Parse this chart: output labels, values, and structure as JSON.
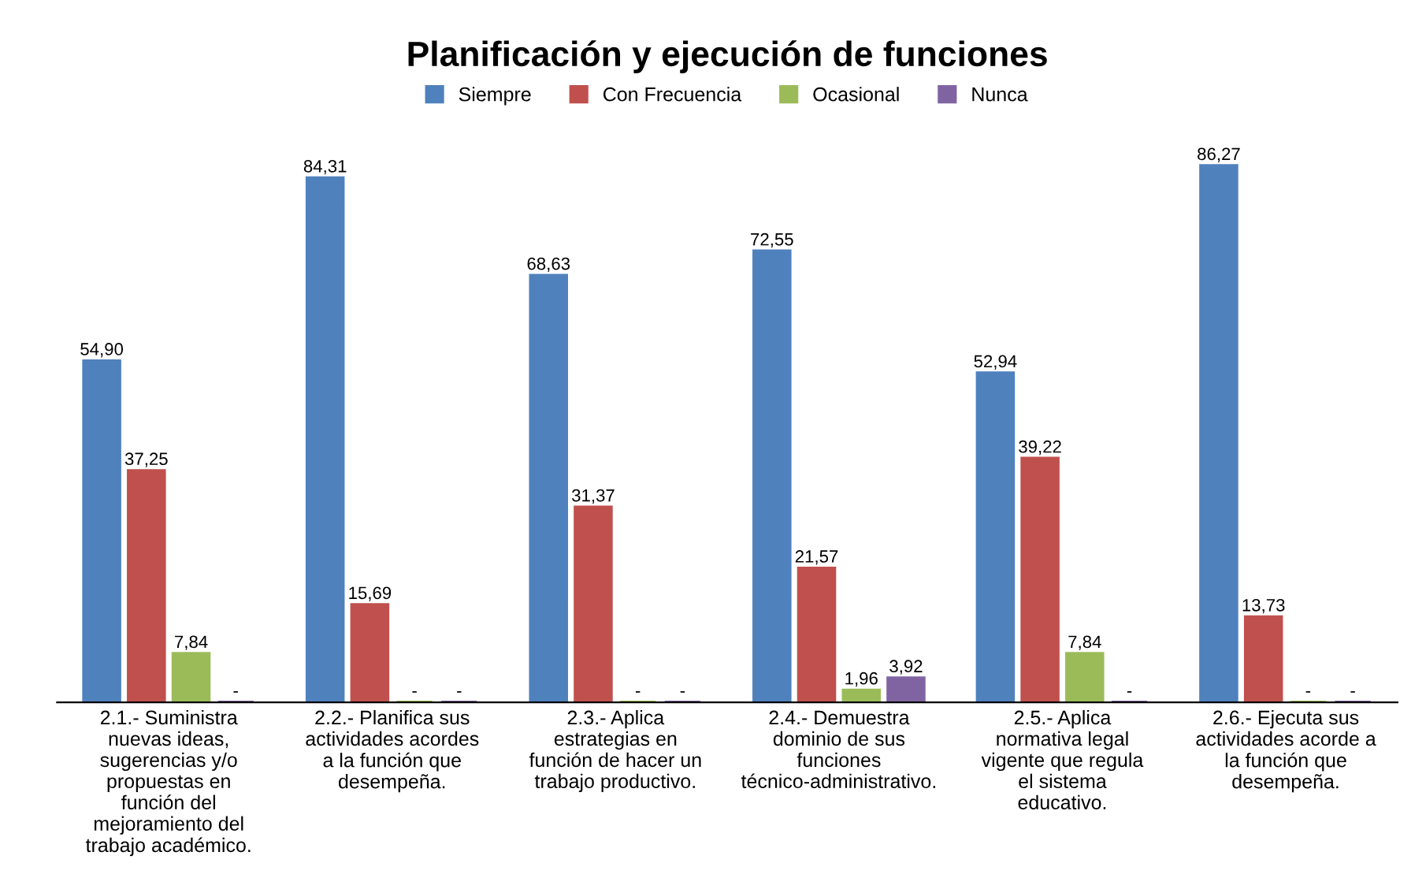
{
  "chart_data": {
    "type": "bar",
    "title": "Planificación y ejecución de funciones",
    "categories": [
      "2.1.- Suministra nuevas ideas, sugerencias y/o propuestas en función del mejoramiento del trabajo académico.",
      "2.2.- Planifica sus actividades acordes a la función que desempeña.",
      "2.3.- Aplica estrategias en función de hacer un trabajo productivo.",
      "2.4.- Demuestra dominio de sus funciones técnico-administrativo.",
      "2.5.- Aplica normativa legal vigente que regula el sistema educativo.",
      "2.6.- Ejecuta sus actividades acorde a la función que desempeña."
    ],
    "series": [
      {
        "name": "Siempre",
        "color": "#4f81bd",
        "values": [
          54.9,
          84.31,
          68.63,
          72.55,
          52.94,
          86.27
        ],
        "value_labels": [
          "54,90",
          "84,31",
          "68,63",
          "72,55",
          "52,94",
          "86,27"
        ]
      },
      {
        "name": "Con Frecuencia",
        "color": "#c0504d",
        "values": [
          37.25,
          15.69,
          31.37,
          21.57,
          39.22,
          13.73
        ],
        "value_labels": [
          "37,25",
          "15,69",
          "31,37",
          "21,57",
          "39,22",
          "13,73"
        ]
      },
      {
        "name": "Ocasional",
        "color": "#9bbb59",
        "values": [
          7.84,
          0,
          0,
          1.96,
          7.84,
          0
        ],
        "value_labels": [
          "7,84",
          "-",
          "-",
          "1,96",
          "7,84",
          "-"
        ]
      },
      {
        "name": "Nunca",
        "color": "#8064a2",
        "values": [
          0,
          0,
          0,
          3.92,
          0,
          0
        ],
        "value_labels": [
          "-",
          "-",
          "-",
          "3,92",
          "-",
          "-"
        ]
      }
    ],
    "legend": "top",
    "grid": false
  }
}
